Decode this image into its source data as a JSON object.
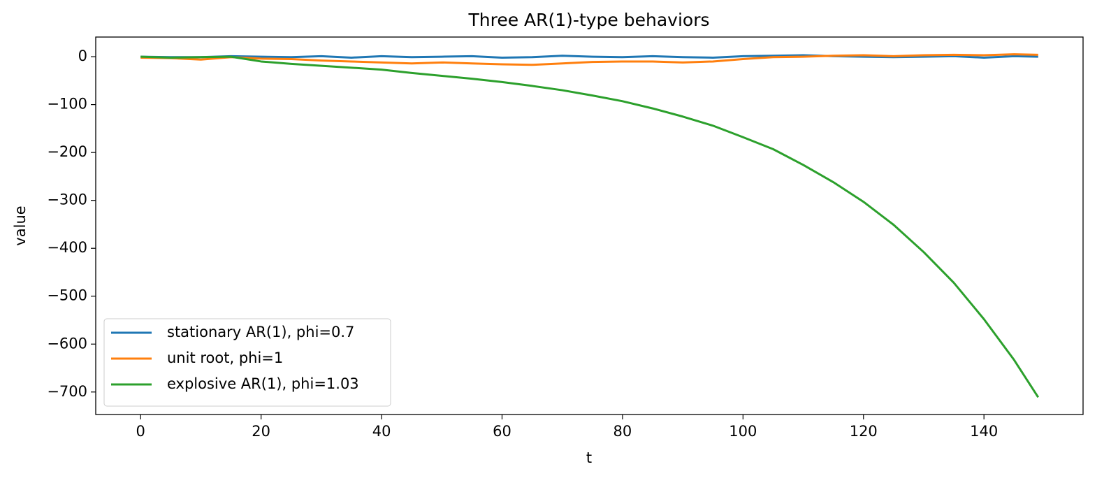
{
  "chart_data": {
    "type": "line",
    "title": "Three AR(1)-type behaviors",
    "x_label": "t",
    "y_label": "value",
    "x": [
      0,
      5,
      10,
      15,
      20,
      25,
      30,
      35,
      40,
      45,
      50,
      55,
      60,
      65,
      70,
      75,
      80,
      85,
      90,
      95,
      100,
      105,
      110,
      115,
      120,
      125,
      130,
      135,
      140,
      145,
      149
    ],
    "series": [
      {
        "name": "stationary AR(1), phi=0.7",
        "color": "#1f77b4",
        "values": [
          0,
          -1,
          -1,
          1,
          0,
          -1,
          1,
          -2,
          1,
          -1,
          0,
          1,
          -2,
          -1,
          2,
          0,
          -1,
          1,
          -1,
          -2,
          1,
          2,
          3,
          1,
          0,
          -1,
          0,
          1,
          -2,
          1,
          0
        ]
      },
      {
        "name": "unit root, phi=1",
        "color": "#ff7f0e",
        "values": [
          -2,
          -3,
          -6,
          -1,
          -4,
          -5,
          -8,
          -10,
          -12,
          -14,
          -12,
          -14,
          -16,
          -17,
          -14,
          -11,
          -10,
          -10,
          -12,
          -10,
          -5,
          -1,
          0,
          2,
          3,
          1,
          3,
          4,
          3,
          5,
          4
        ]
      },
      {
        "name": "explosive AR(1), phi=1.03",
        "color": "#2ca02c",
        "values": [
          0,
          -2,
          -1,
          0,
          -10,
          -15,
          -19,
          -23,
          -27,
          -34,
          -40,
          -46,
          -53,
          -61,
          -70,
          -81,
          -93,
          -108,
          -125,
          -144,
          -168,
          -193,
          -226,
          -262,
          -303,
          -351,
          -408,
          -472,
          -548,
          -633,
          -711
        ]
      }
    ],
    "xlim": [
      -7.45,
      156.45
    ],
    "ylim": [
      -747,
      41
    ],
    "xticks": [
      0,
      20,
      40,
      60,
      80,
      100,
      120,
      140
    ],
    "yticks": [
      0,
      -100,
      -200,
      -300,
      -400,
      -500,
      -600,
      -700
    ],
    "legend": "lower left"
  }
}
